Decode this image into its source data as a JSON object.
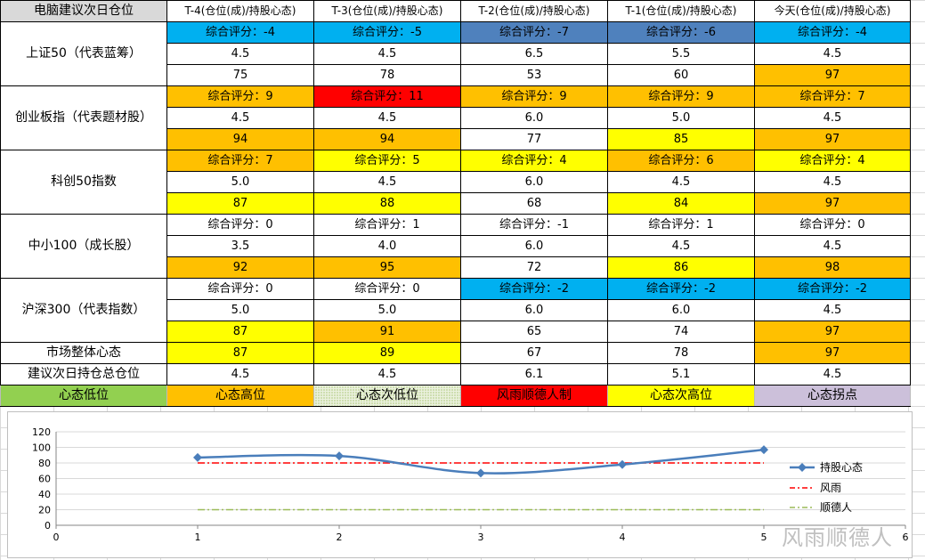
{
  "header": {
    "corner": "电脑建议次日仓位",
    "columns": [
      "T-4(仓位(成)/持股心态)",
      "T-3(仓位(成)/持股心态)",
      "T-2(仓位(成)/持股心态)",
      "T-1(仓位(成)/持股心态)",
      "今天(仓位(成)/持股心态)"
    ]
  },
  "indices": [
    {
      "name": "上证50（代表蓝筹）",
      "scores": [
        "综合评分：-4",
        "综合评分：-5",
        "综合评分：-7",
        "综合评分：-6",
        "综合评分：-4"
      ],
      "score_colors": [
        "blue",
        "blue",
        "dblue",
        "dblue",
        "blue"
      ],
      "positions": [
        "4.5",
        "4.5",
        "6.5",
        "5.5",
        "4.5"
      ],
      "moods": [
        "75",
        "78",
        "53",
        "60",
        "97"
      ],
      "mood_colors": [
        "",
        "",
        "",
        "",
        "orange"
      ]
    },
    {
      "name": "创业板指（代表题材股）",
      "scores": [
        "综合评分：9",
        "综合评分：11",
        "综合评分：9",
        "综合评分：9",
        "综合评分：7"
      ],
      "score_colors": [
        "orange",
        "red",
        "orange",
        "orange",
        "orange"
      ],
      "positions": [
        "4.5",
        "4.5",
        "6.0",
        "5.0",
        "4.5"
      ],
      "moods": [
        "94",
        "94",
        "77",
        "85",
        "97"
      ],
      "mood_colors": [
        "orange",
        "orange",
        "",
        "yellow",
        "orange"
      ]
    },
    {
      "name": "科创50指数",
      "scores": [
        "综合评分：7",
        "综合评分：5",
        "综合评分：4",
        "综合评分：6",
        "综合评分：4"
      ],
      "score_colors": [
        "orange",
        "yellow",
        "yellow",
        "orange",
        "yellow"
      ],
      "positions": [
        "5.0",
        "4.5",
        "6.0",
        "4.5",
        "4.5"
      ],
      "moods": [
        "87",
        "88",
        "68",
        "84",
        "97"
      ],
      "mood_colors": [
        "yellow",
        "yellow",
        "",
        "yellow",
        "orange"
      ]
    },
    {
      "name": "中小100（成长股）",
      "scores": [
        "综合评分：0",
        "综合评分：1",
        "综合评分：-1",
        "综合评分：1",
        "综合评分：0"
      ],
      "score_colors": [
        "",
        "",
        "",
        "",
        ""
      ],
      "positions": [
        "3.5",
        "4.0",
        "6.0",
        "4.5",
        "4.5"
      ],
      "moods": [
        "92",
        "95",
        "72",
        "86",
        "98"
      ],
      "mood_colors": [
        "orange",
        "orange",
        "",
        "yellow",
        "orange"
      ]
    },
    {
      "name": "沪深300（代表指数）",
      "scores": [
        "综合评分：0",
        "综合评分：0",
        "综合评分：-2",
        "综合评分：-2",
        "综合评分：-2"
      ],
      "score_colors": [
        "",
        "",
        "blue",
        "blue",
        "blue"
      ],
      "positions": [
        "5.0",
        "5.0",
        "6.0",
        "6.0",
        "4.5"
      ],
      "moods": [
        "87",
        "91",
        "65",
        "74",
        "97"
      ],
      "mood_colors": [
        "yellow",
        "orange",
        "",
        "",
        "orange"
      ]
    }
  ],
  "market": {
    "label": "市场整体心态",
    "values": [
      "87",
      "89",
      "67",
      "78",
      "97"
    ],
    "colors": [
      "yellow",
      "yellow",
      "",
      "",
      "orange"
    ]
  },
  "suggestion": {
    "label": "建议次日持仓总仓位",
    "values": [
      "4.5",
      "4.5",
      "6.1",
      "5.1",
      "4.5"
    ]
  },
  "legend_row": [
    {
      "label": "心态低位",
      "color": "green"
    },
    {
      "label": "心态高位",
      "color": "orange"
    },
    {
      "label": "心态次低位",
      "color": "dotted"
    },
    {
      "label": "风雨顺德人制",
      "color": "red"
    },
    {
      "label": "心态次高位",
      "color": "yellow"
    },
    {
      "label": "心态拐点",
      "color": "lavender"
    }
  ],
  "colors": {
    "blue": "#00b0f0",
    "dblue": "#4f81bd",
    "orange": "#ffc000",
    "red": "#ff0000",
    "yellow": "#ffff00",
    "green": "#92d050",
    "lavender": "#ccc0da",
    "series_mood": "#4a7ebb",
    "series_fengyu": "#ff0000",
    "series_shunde": "#9bbb59"
  },
  "chart_data": {
    "type": "line",
    "xlim": [
      0,
      6
    ],
    "ylim": [
      0,
      120
    ],
    "x_ticks": [
      "0",
      "1",
      "2",
      "3",
      "4",
      "5",
      "6"
    ],
    "y_ticks": [
      "0",
      "20",
      "40",
      "60",
      "80",
      "100",
      "120"
    ],
    "grid": true,
    "legend_position": "right",
    "series": [
      {
        "name": "持股心态",
        "style": "smooth-line-with-diamond-markers",
        "x": [
          1,
          2,
          3,
          4,
          5
        ],
        "y": [
          87,
          89,
          67,
          78,
          97
        ]
      },
      {
        "name": "风雨",
        "style": "dash-dot",
        "x": [
          1,
          5
        ],
        "y": [
          80,
          80
        ]
      },
      {
        "name": "顺德人",
        "style": "dash-dot",
        "x": [
          1,
          5
        ],
        "y": [
          20,
          20
        ]
      }
    ]
  },
  "watermark": "风雨顺德人"
}
